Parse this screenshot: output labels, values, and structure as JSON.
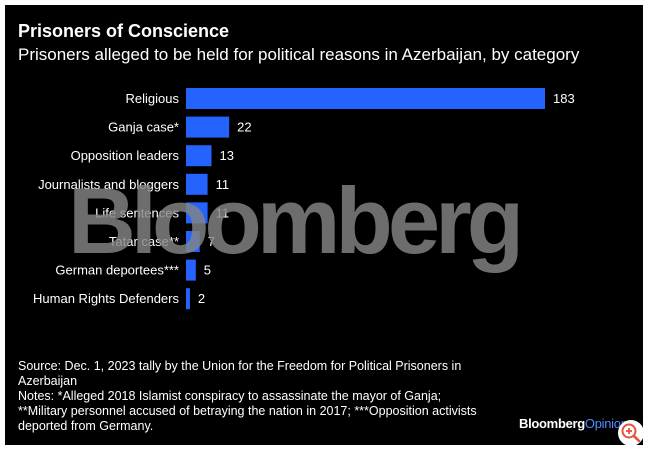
{
  "title": "Prisoners of Conscience",
  "subtitle": "Prisoners alleged to be held for political reasons in Azerbaijan, by category",
  "watermark": "Bloomberg",
  "chart_data": {
    "type": "bar",
    "orientation": "horizontal",
    "categories": [
      "Religious",
      "Ganja case*",
      "Opposition leaders",
      "Journalists and bloggers",
      "Life sentences",
      "Tatar case**",
      "German deportees***",
      "Human Rights Defenders"
    ],
    "values": [
      183,
      22,
      13,
      11,
      11,
      7,
      5,
      2
    ],
    "title": "Prisoners of Conscience",
    "subtitle": "Prisoners alleged to be held for political reasons in Azerbaijan, by category",
    "xlabel": "",
    "ylabel": "",
    "xlim": [
      0,
      183
    ],
    "grid": false,
    "data_labels": true,
    "bar_color": "#2563ff"
  },
  "notes": {
    "source": "Source: Dec. 1, 2023 tally by the Union for the Freedom for Political Prisoners in Azerbaijan",
    "note1": "Notes: *Alleged 2018 Islamist conspiracy to assassinate the mayor of Ganja;",
    "note2": "**Military personnel accused of betraying the nation in 2017; ***Opposition activists deported from Germany."
  },
  "brand": {
    "name": "Bloomberg",
    "section": "Opinion"
  },
  "zoom_icon": "zoom-in-icon",
  "colors": {
    "background": "#000000",
    "bar": "#2563ff",
    "text": "#ffffff",
    "accent": "#4f8cff",
    "zoom": "#e5533d"
  }
}
